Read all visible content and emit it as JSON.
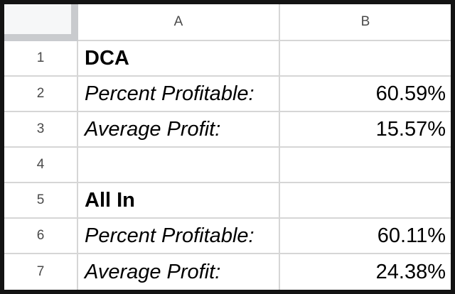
{
  "sheet": {
    "columns": [
      "A",
      "B"
    ],
    "rows": [
      {
        "n": "1",
        "a": "DCA",
        "b": ""
      },
      {
        "n": "2",
        "a": "Percent Profitable:",
        "b": "60.59%"
      },
      {
        "n": "3",
        "a": "Average Profit:",
        "b": "15.57%"
      },
      {
        "n": "4",
        "a": "",
        "b": ""
      },
      {
        "n": "5",
        "a": "All In",
        "b": ""
      },
      {
        "n": "6",
        "a": "Percent Profitable:",
        "b": "60.11%"
      },
      {
        "n": "7",
        "a": "Average Profit:",
        "b": "24.38%"
      }
    ],
    "colors": {
      "frame": "#131313",
      "grid_line": "#d6d6d6",
      "header_text": "#4a4a4a",
      "cell_text": "#000000",
      "cell_bg": "#ffffff",
      "corner_fill": "#f6f7f8",
      "corner_edge": "#c9cbce"
    }
  }
}
